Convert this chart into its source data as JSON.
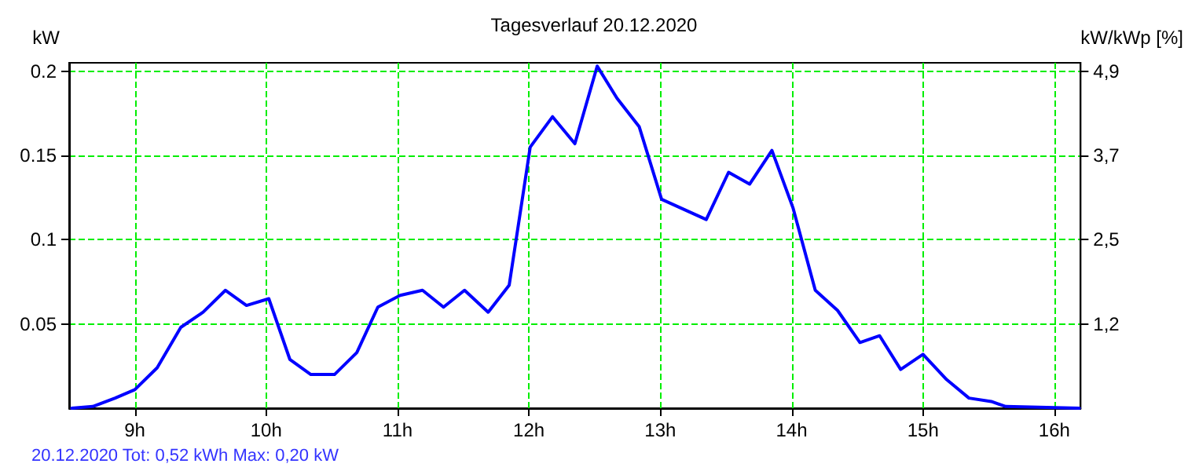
{
  "chart_data": {
    "type": "line",
    "title": "Tagesverlauf 20.12.2020",
    "ylabel": "kW",
    "y2label": "kW/kWp [%]",
    "annotations": [
      "20.12.2020 Tot: 0,52 kWh Max: 0,20 kW"
    ],
    "series": [
      {
        "color": "#0000ff",
        "x": [
          8.52,
          8.68,
          8.85,
          9.0,
          9.17,
          9.35,
          9.52,
          9.69,
          9.85,
          10.02,
          10.18,
          10.34,
          10.52,
          10.69,
          10.85,
          11.02,
          11.19,
          11.35,
          11.51,
          11.69,
          11.85,
          12.01,
          12.18,
          12.35,
          12.52,
          12.67,
          12.84,
          13.01,
          13.35,
          13.52,
          13.68,
          13.85,
          14.01,
          14.18,
          14.35,
          14.52,
          14.67,
          14.83,
          15.0,
          15.18,
          15.35,
          15.52,
          15.63,
          16.19
        ],
        "values": [
          0,
          0.001,
          0.006,
          0.011,
          0.024,
          0.048,
          0.057,
          0.07,
          0.061,
          0.065,
          0.029,
          0.02,
          0.02,
          0.033,
          0.06,
          0.067,
          0.07,
          0.06,
          0.07,
          0.057,
          0.073,
          0.155,
          0.173,
          0.157,
          0.203,
          0.184,
          0.167,
          0.124,
          0.112,
          0.14,
          0.133,
          0.153,
          0.119,
          0.07,
          0.058,
          0.039,
          0.043,
          0.023,
          0.032,
          0.017,
          0.006,
          0.004,
          0.001,
          0
        ]
      }
    ],
    "xlim": [
      8.5,
      16.2
    ],
    "xticks": [
      {
        "value": 9,
        "label": "9h"
      },
      {
        "value": 10,
        "label": "10h"
      },
      {
        "value": 11,
        "label": "11h"
      },
      {
        "value": 12,
        "label": "12h"
      },
      {
        "value": 13,
        "label": "13h"
      },
      {
        "value": 14,
        "label": "14h"
      },
      {
        "value": 15,
        "label": "15h"
      },
      {
        "value": 16,
        "label": "16h"
      }
    ],
    "ylim": [
      0,
      0.205
    ],
    "yticks": [
      0.05,
      0.1,
      0.15,
      0.2
    ],
    "y2lim": [
      0,
      5.02
    ],
    "y2ticks": [
      {
        "value": 1.22,
        "label": "1,2"
      },
      {
        "value": 2.45,
        "label": "2,5"
      },
      {
        "value": 3.67,
        "label": "3,7"
      },
      {
        "value": 4.9,
        "label": "4,9"
      }
    ],
    "grid": true,
    "marker": "none",
    "line_style": "solid"
  }
}
